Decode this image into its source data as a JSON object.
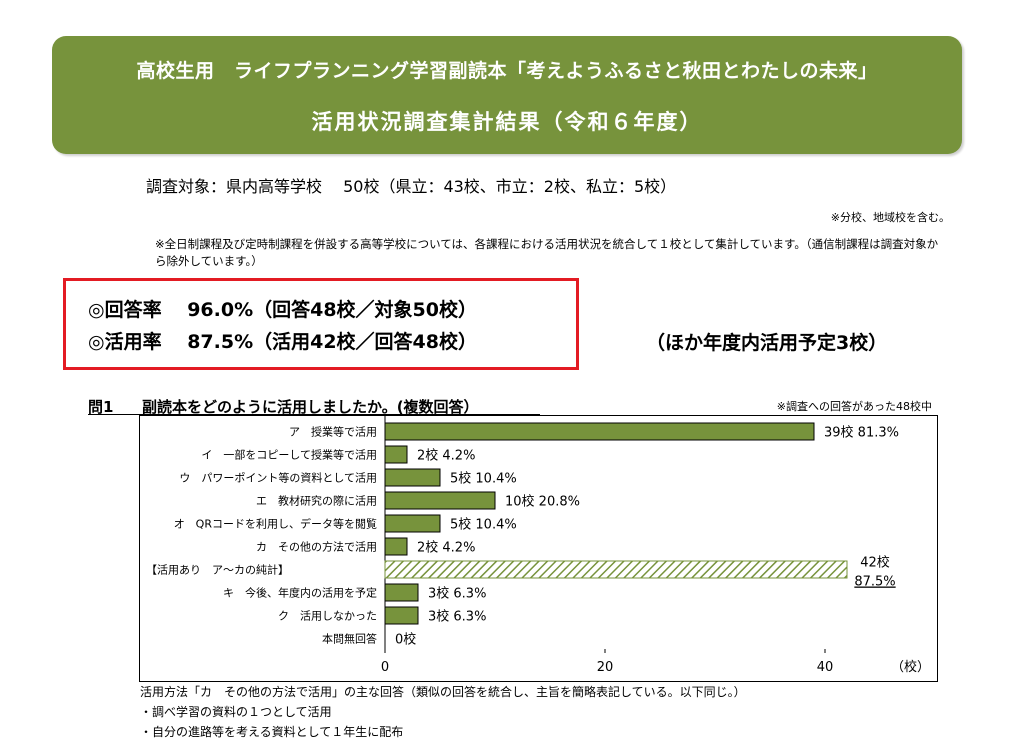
{
  "header": {
    "line1": "高校生用　ライフプランニング学習副読本「考えようふるさと秋田とわたしの未来」",
    "line2": "活用状況調査集計結果（令和６年度）"
  },
  "survey": {
    "target": "調査対象：県内高等学校　 50校（県立：43校、市立：2校、私立：5校）",
    "note1": "※分校、地域校を含む。",
    "note2": "※全日制課程及び定時制課程を併設する高等学校については、各課程における活用状況を統合して１校として集計しています。（通信制課程は調査対象から除外しています。）"
  },
  "rates": {
    "response": "◎回答率　 96.0%（回答48校／対象50校）",
    "usage": "◎活用率　 87.5%（活用42校／回答48校）",
    "other_plan": "（ほか年度内活用予定3校）"
  },
  "question": {
    "number": "問1",
    "text": "副読本をどのように活用しましたか。(複数回答）",
    "note": "※調査への回答があった48校中"
  },
  "colors": {
    "banner": "#77933c",
    "bar": "#77933c",
    "highlight": "#e31b23"
  },
  "chart_data": {
    "type": "bar",
    "orientation": "horizontal",
    "categories": [
      "ア　授業等で活用",
      "イ　一部をコピーして授業等で活用",
      "ウ　パワーポイント等の資料として活用",
      "エ　教材研究の際に活用",
      "オ　QRコードを利用し、データ等を閲覧",
      "カ　その他の方法で活用",
      "【活用あり　ア～カの純計】",
      "キ　今後、年度内の活用を予定",
      "ク　活用しなかった",
      "本問無回答"
    ],
    "values": [
      39,
      2,
      5,
      10,
      5,
      2,
      42,
      3,
      3,
      0
    ],
    "value_labels": [
      "39校 81.3%",
      "2校 4.2%",
      "5校 10.4%",
      "10校 20.8%",
      "5校 10.4%",
      "2校 4.2%",
      "42校",
      "3校 6.3%",
      "3校 6.3%",
      "0校"
    ],
    "total_percent_label": "87.5%",
    "hatched_index": 6,
    "x_ticks": [
      0,
      20,
      40
    ],
    "xlim": [
      0,
      48
    ],
    "unit_label": "（校）"
  },
  "footer": {
    "line1": "活用方法「カ　その他の方法で活用」の主な回答（類似の回答を統合し、主旨を簡略表記している。以下同じ。）",
    "line2": "・調べ学習の資料の１つとして活用",
    "line3": "・自分の進路等を考える資料として１年生に配布"
  }
}
